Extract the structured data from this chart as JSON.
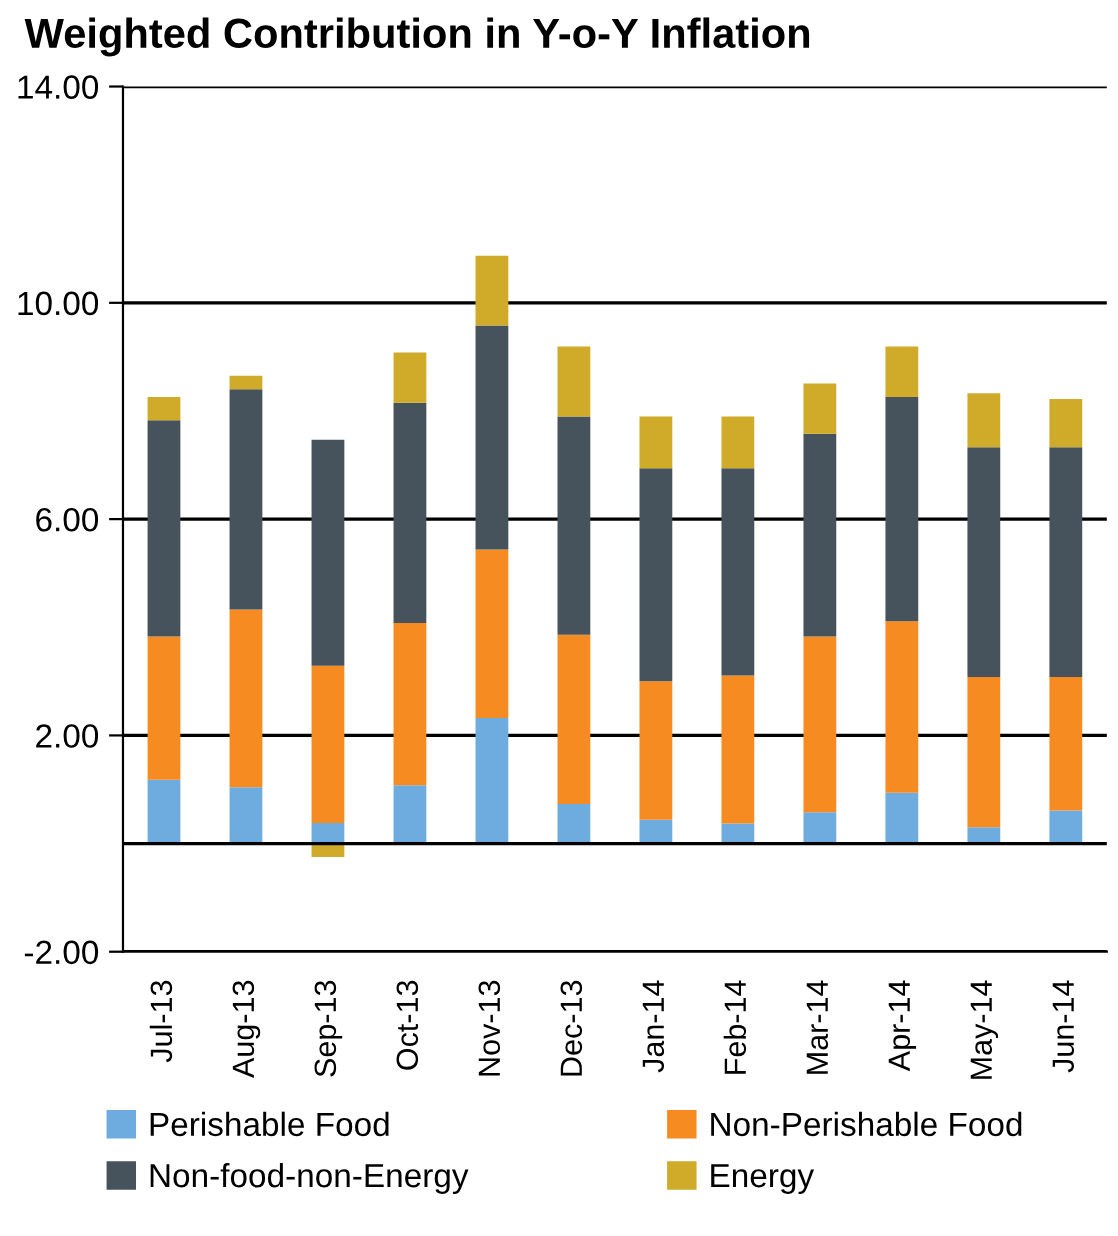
{
  "chart_data": {
    "type": "bar",
    "title": "Weighted Contribution in Y-o-Y Inflation",
    "stacked": true,
    "categories": [
      "Jul-13",
      "Aug-13",
      "Sep-13",
      "Oct-13",
      "Nov-13",
      "Dec-13",
      "Jan-14",
      "Feb-14",
      "Mar-14",
      "Apr-14",
      "May-14",
      "Jun-14"
    ],
    "series": [
      {
        "name": "Perishable Food",
        "color": "#6eacdf",
        "values": [
          1.18,
          1.04,
          0.38,
          1.08,
          2.32,
          0.73,
          0.44,
          0.37,
          0.58,
          0.94,
          0.3,
          0.61
        ]
      },
      {
        "name": "Non-Perishable Food",
        "color": "#f68b21",
        "values": [
          2.65,
          3.29,
          2.91,
          3.0,
          3.12,
          3.13,
          2.56,
          2.74,
          3.25,
          3.17,
          2.78,
          2.47
        ]
      },
      {
        "name": "Non-food-non-Energy",
        "color": "#47535c",
        "values": [
          4.0,
          4.07,
          4.18,
          4.07,
          4.14,
          4.04,
          3.94,
          3.83,
          3.75,
          4.15,
          4.25,
          4.25
        ]
      },
      {
        "name": "Energy",
        "color": "#d0aa29",
        "values": [
          0.43,
          0.25,
          -0.25,
          0.93,
          1.29,
          1.29,
          0.96,
          0.96,
          0.93,
          0.93,
          1.0,
          0.89
        ]
      }
    ],
    "ylim": [
      -2,
      14
    ],
    "yticks": [
      {
        "value": -2,
        "label": "-2.00"
      },
      {
        "value": 2,
        "label": "2.00"
      },
      {
        "value": 6,
        "label": "6.00"
      },
      {
        "value": 10,
        "label": "10.00"
      },
      {
        "value": 14,
        "label": "14.00"
      }
    ],
    "grid": "y",
    "legend": "bottom"
  }
}
